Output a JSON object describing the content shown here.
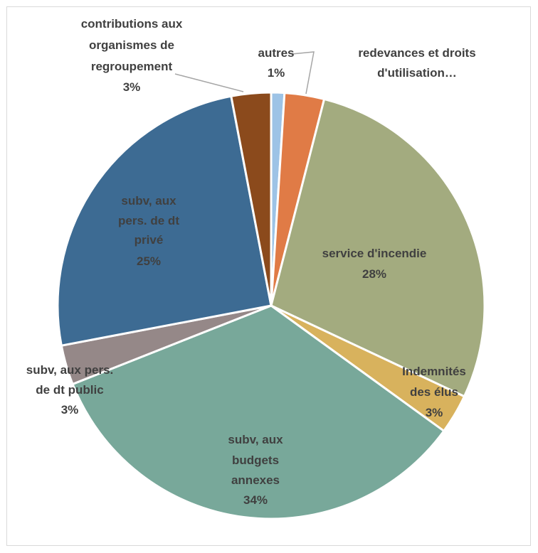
{
  "chart_data": {
    "type": "pie",
    "title": "",
    "slices": [
      {
        "label": "autres",
        "value": 1,
        "display": "1%",
        "color": "#9dc3e6"
      },
      {
        "label": "redevances et droits d'utilisation…",
        "value": 3,
        "display": "",
        "color": "#e07b46"
      },
      {
        "label": "service d'incendie",
        "value": 28,
        "display": "28%",
        "color": "#a3ab7f"
      },
      {
        "label": "Indemnités des élus",
        "value": 3,
        "display": "3%",
        "color": "#d8b25d"
      },
      {
        "label": "subv, aux budgets annexes",
        "value": 34,
        "display": "34%",
        "color": "#78a89a"
      },
      {
        "label": "subv, aux pers. de dt public",
        "value": 3,
        "display": "3%",
        "color": "#958888"
      },
      {
        "label": "subv, aux pers. de dt privé",
        "value": 25,
        "display": "25%",
        "color": "#3d6b93"
      },
      {
        "label": "contributions aux organismes de regroupement",
        "value": 3,
        "display": "3%",
        "color": "#8b4a1c"
      }
    ],
    "legend": "none"
  }
}
